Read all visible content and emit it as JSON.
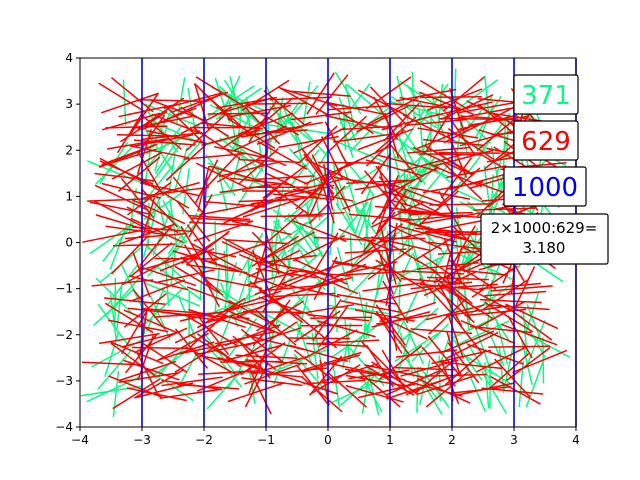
{
  "chart_data": {
    "type": "line",
    "title": "",
    "xlabel": "",
    "ylabel": "",
    "xlim": [
      -4,
      4
    ],
    "ylim": [
      -4,
      4
    ],
    "xticks": [
      "−4",
      "−3",
      "−2",
      "−1",
      "0",
      "1",
      "2",
      "3",
      "4"
    ],
    "yticks": [
      "−4",
      "−3",
      "−2",
      "−1",
      "0",
      "1",
      "2",
      "3",
      "4"
    ],
    "grid": false,
    "vertical_lines_x": [
      -3,
      -2,
      -1,
      0,
      1,
      2,
      3,
      4
    ],
    "needle_length": 1,
    "needles_total": 1000,
    "needles_not_crossing": 371,
    "needles_crossing": 629,
    "pi_estimate_label": "2×1000:629=",
    "pi_estimate_value": "3.180",
    "labels": {
      "not_crossing": "371",
      "crossing": "629",
      "total": "1000"
    },
    "colors": {
      "not_crossing": "#00ff7f",
      "crossing": "#ff0000",
      "total": "#0000ff",
      "lines": "#0000ff"
    }
  }
}
